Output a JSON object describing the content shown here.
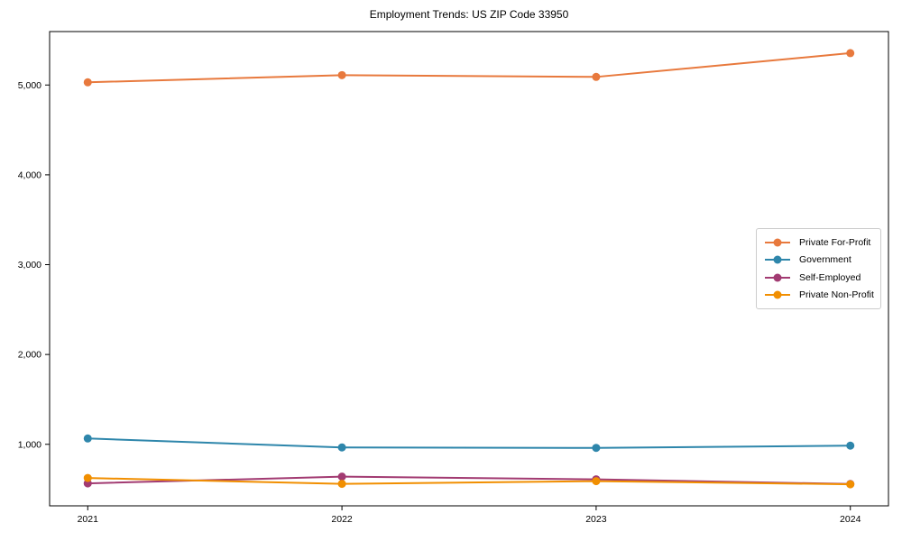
{
  "title": "Employment Trends: US ZIP Code 33950",
  "chart_data": {
    "type": "line",
    "title": "Employment Trends: US ZIP Code 33950",
    "xlabel": "",
    "ylabel": "",
    "x": [
      2021,
      2022,
      2023,
      2024
    ],
    "xtick_labels": [
      "2021",
      "2022",
      "2023",
      "2024"
    ],
    "yticks": [
      1000,
      2000,
      3000,
      4000,
      5000
    ],
    "ytick_labels": [
      "1,000",
      "2,000",
      "3,000",
      "4,000",
      "5,000"
    ],
    "xlim": [
      2020.85,
      2024.15
    ],
    "ylim": [
      315,
      5595
    ],
    "grid": false,
    "legend_position": "center-right",
    "marker": "circle",
    "series": [
      {
        "name": "Private For-Profit",
        "color": "#E8793D",
        "values": [
          5030,
          5110,
          5090,
          5355
        ]
      },
      {
        "name": "Government",
        "color": "#2E86AB",
        "values": [
          1065,
          965,
          960,
          985
        ]
      },
      {
        "name": "Self-Employed",
        "color": "#A23B72",
        "values": [
          565,
          640,
          610,
          558
        ]
      },
      {
        "name": "Private Non-Profit",
        "color": "#F18F01",
        "values": [
          625,
          560,
          590,
          555
        ]
      }
    ]
  }
}
